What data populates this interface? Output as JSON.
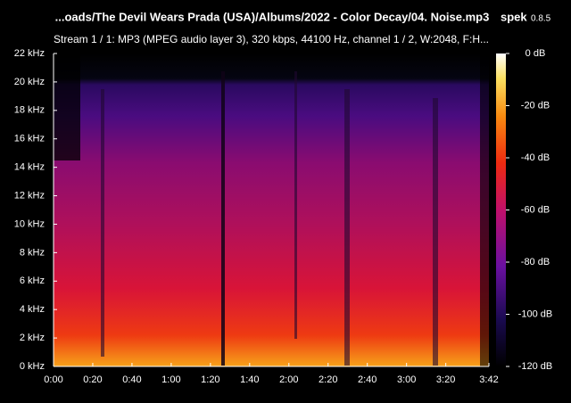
{
  "chart_data": {
    "type": "spectrogram",
    "title": "...oads/The Devil Wears Prada (USA)/Albums/2022 - Color Decay/04. Noise.mp3",
    "app_name": "spek",
    "app_version": "0.8.5",
    "subtitle": "Stream 1 / 1: MP3 (MPEG audio layer 3), 320 kbps, 44100 Hz, channel 1 / 2, W:2048, F:H...",
    "xlim": [
      0,
      222
    ],
    "xticks": [
      {
        "value": 0,
        "label": "0:00"
      },
      {
        "value": 20,
        "label": "0:20"
      },
      {
        "value": 40,
        "label": "0:40"
      },
      {
        "value": 60,
        "label": "1:00"
      },
      {
        "value": 80,
        "label": "1:20"
      },
      {
        "value": 100,
        "label": "1:40"
      },
      {
        "value": 120,
        "label": "2:00"
      },
      {
        "value": 140,
        "label": "2:20"
      },
      {
        "value": 160,
        "label": "2:40"
      },
      {
        "value": 180,
        "label": "3:00"
      },
      {
        "value": 200,
        "label": "3:20"
      },
      {
        "value": 222,
        "label": "3:42"
      }
    ],
    "ylim": [
      0,
      22
    ],
    "yticks": [
      {
        "value": 0,
        "label": "0 kHz"
      },
      {
        "value": 2,
        "label": "2 kHz"
      },
      {
        "value": 4,
        "label": "4 kHz"
      },
      {
        "value": 6,
        "label": "6 kHz"
      },
      {
        "value": 8,
        "label": "8 kHz"
      },
      {
        "value": 10,
        "label": "10 kHz"
      },
      {
        "value": 12,
        "label": "12 kHz"
      },
      {
        "value": 14,
        "label": "14 kHz"
      },
      {
        "value": 16,
        "label": "16 kHz"
      },
      {
        "value": 18,
        "label": "18 kHz"
      },
      {
        "value": 20,
        "label": "20 kHz"
      },
      {
        "value": 22,
        "label": "22 kHz"
      }
    ],
    "clim": [
      -120,
      0
    ],
    "cticks": [
      {
        "value": 0,
        "label": "0 dB"
      },
      {
        "value": -20,
        "label": "-20 dB"
      },
      {
        "value": -40,
        "label": "-40 dB"
      },
      {
        "value": -60,
        "label": "-60 dB"
      },
      {
        "value": -80,
        "label": "-80 dB"
      },
      {
        "value": -100,
        "label": "-100 dB"
      },
      {
        "value": -120,
        "label": "-120 dB"
      }
    ]
  }
}
